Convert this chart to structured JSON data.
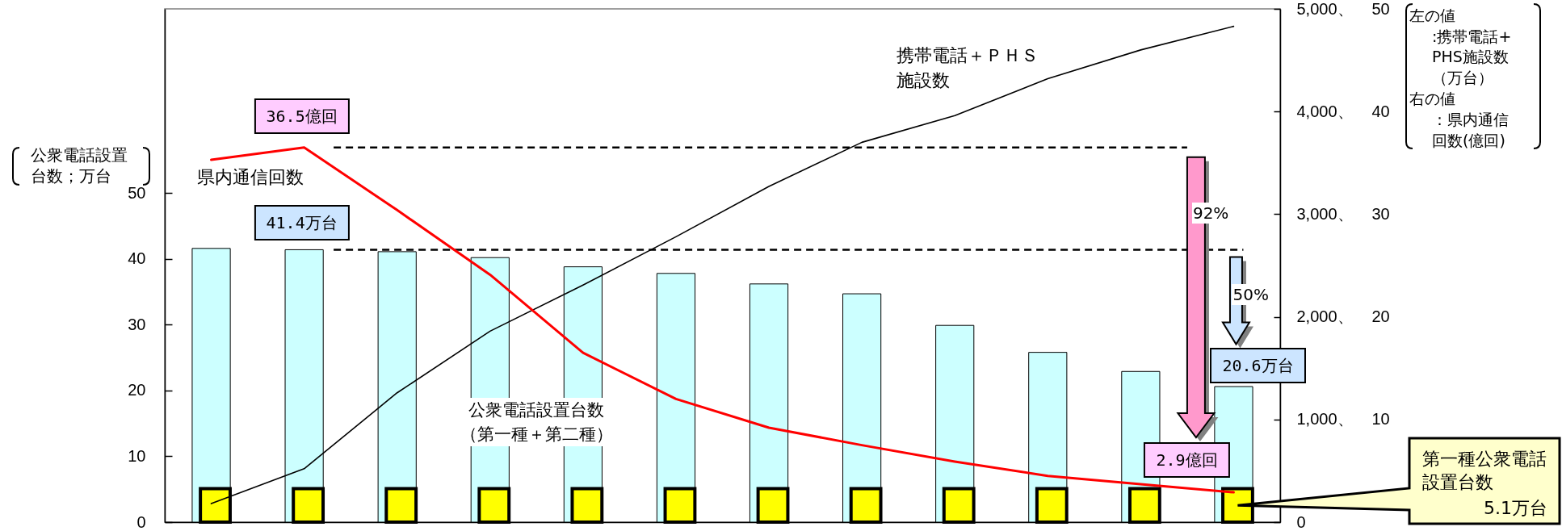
{
  "chart_data": {
    "type": "bar",
    "categories": [
      null,
      null,
      null,
      null,
      null,
      null,
      null,
      null,
      null,
      null,
      null,
      null
    ],
    "series": [
      {
        "name": "公衆電話設置台数（第一種＋第二種）",
        "color": "#ccffff",
        "values": [
          41.6,
          41.4,
          41.1,
          40.2,
          38.8,
          37.8,
          36.2,
          34.7,
          29.9,
          25.8,
          22.9,
          20.6
        ],
        "value_labels": [
          null,
          "41.4万台",
          null,
          null,
          null,
          null,
          null,
          null,
          null,
          null,
          null,
          "20.6万台"
        ]
      },
      {
        "color": "#ffff00",
        "values": [
          5.1,
          5.1,
          5.1,
          5.1,
          5.1,
          5.1,
          5.1,
          5.1,
          5.1,
          5.1,
          5.1,
          5.1
        ]
      },
      {
        "name": "携帯電話＋ＰＨＳ施設数",
        "type": "line",
        "color": "#000000",
        "axis": "y2",
        "values": [
          180,
          520,
          1260,
          1860,
          2310,
          2780,
          3270,
          3700,
          3960,
          4320,
          4600,
          4830
        ]
      },
      {
        "name": "県内通信回数",
        "type": "line",
        "color": "#ff0000",
        "axis": "y3",
        "values": [
          35.3,
          36.5,
          30.4,
          24.1,
          16.5,
          12.0,
          9.2,
          7.5,
          5.9,
          4.5,
          3.7,
          2.9
        ],
        "value_labels": [
          null,
          "36.5億回",
          null,
          null,
          null,
          null,
          null,
          null,
          null,
          null,
          null,
          "2.9億回"
        ]
      }
    ],
    "ylabel": "公衆電話設置台数；万台",
    "y2label": "左の値:携帯電話+PHS施設数（万台）",
    "y3label": "右の値：県内通信回数(億回)",
    "ylim": [
      0,
      78
    ],
    "yticks": [
      0,
      10,
      20,
      30,
      40,
      50
    ],
    "y2lim": [
      0,
      5000
    ],
    "y2ticks": [
      0,
      {
        "value": 1000,
        "label": "1,000、"
      },
      {
        "value": 2000,
        "label": "2,000、"
      },
      {
        "value": 3000,
        "label": "3,000、"
      },
      {
        "value": 4000,
        "label": "4,000、"
      },
      {
        "value": 5000,
        "label": "5,000、"
      }
    ],
    "y3lim": [
      0,
      50
    ],
    "y3ticks": [
      10,
      20,
      30,
      40,
      50
    ],
    "ref_lines": [
      {
        "axis": "y3",
        "value": 36.5,
        "line_style": "dashed"
      },
      {
        "axis": "y",
        "value": 41.4,
        "line_style": "dashed"
      }
    ],
    "annotations": [
      "92%",
      "50%",
      "第一種公衆電話設置台数",
      "5.1万台"
    ]
  }
}
